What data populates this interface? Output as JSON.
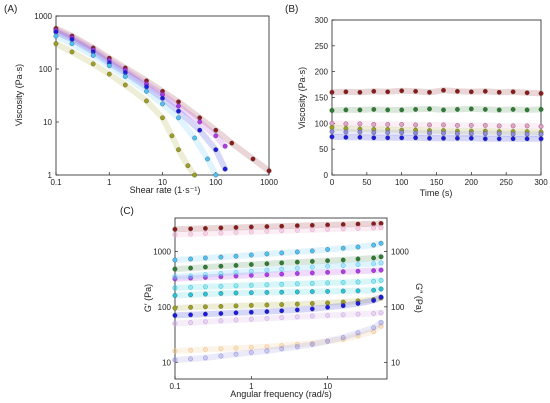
{
  "figure": {
    "panels": [
      "(A)",
      "(B)",
      "(C)"
    ]
  },
  "colors": {
    "brown": "#8B1A1A",
    "cyan": "#4FC3F7",
    "green": "#2E7D32",
    "purple": "#B23AEE",
    "teal": "#26C6DA",
    "olive": "#A0A020",
    "blue": "#1A1AE0",
    "periwinkle": "#8C8CE0",
    "lavender": "#C8A0E0",
    "peach": "#F0C080",
    "pink": "#E8A0C8",
    "gray": "#606080"
  },
  "chart_data": [
    {
      "panel": "(A)",
      "type": "scatter",
      "xlabel": "Shear rate (1·s⁻¹)",
      "ylabel": "Viscosity (Pa·s)",
      "xscale": "log",
      "yscale": "log",
      "xlim": [
        0.1,
        1000
      ],
      "ylim": [
        1,
        1000
      ],
      "xticks": [
        0.1,
        1,
        10,
        100,
        1000
      ],
      "xtick_labels": [
        "0.1",
        "1",
        "10",
        "100",
        "1000"
      ],
      "yticks": [
        1,
        10,
        100,
        1000
      ],
      "ytick_labels": [
        "1",
        "10",
        "100",
        "1000"
      ],
      "grid": false,
      "legend": "none",
      "series": [
        {
          "color": "brown",
          "points": [
            [
              0.1,
              580
            ],
            [
              0.2,
              420
            ],
            [
              0.5,
              250
            ],
            [
              1,
              160
            ],
            [
              2,
              105
            ],
            [
              5,
              60
            ],
            [
              10,
              38
            ],
            [
              20,
              24
            ],
            [
              50,
              12
            ],
            [
              100,
              7
            ],
            [
              200,
              4
            ],
            [
              500,
              2
            ],
            [
              1000,
              1.2
            ]
          ]
        },
        {
          "color": "purple",
          "points": [
            [
              0.1,
              540
            ],
            [
              0.2,
              390
            ],
            [
              0.5,
              230
            ],
            [
              1,
              145
            ],
            [
              2,
              95
            ],
            [
              5,
              52
            ],
            [
              10,
              33
            ],
            [
              20,
              20
            ],
            [
              50,
              10
            ],
            [
              100,
              5.5
            ],
            [
              150,
              3.5
            ]
          ]
        },
        {
          "color": "blue",
          "points": [
            [
              0.1,
              500
            ],
            [
              0.2,
              360
            ],
            [
              0.5,
              210
            ],
            [
              1,
              130
            ],
            [
              2,
              85
            ],
            [
              5,
              46
            ],
            [
              10,
              28
            ],
            [
              20,
              16
            ],
            [
              50,
              7
            ],
            [
              100,
              3
            ],
            [
              150,
              1.3
            ]
          ]
        },
        {
          "color": "cyan",
          "points": [
            [
              0.1,
              420
            ],
            [
              0.2,
              300
            ],
            [
              0.5,
              180
            ],
            [
              1,
              115
            ],
            [
              2,
              72
            ],
            [
              5,
              38
            ],
            [
              10,
              22
            ],
            [
              20,
              12
            ],
            [
              40,
              5
            ],
            [
              70,
              2
            ],
            [
              100,
              1
            ]
          ]
        },
        {
          "color": "olive",
          "points": [
            [
              0.1,
              300
            ],
            [
              0.2,
              210
            ],
            [
              0.5,
              125
            ],
            [
              1,
              80
            ],
            [
              2,
              50
            ],
            [
              5,
              25
            ],
            [
              10,
              12
            ],
            [
              15,
              5.5
            ],
            [
              20,
              3
            ],
            [
              30,
              1.5
            ],
            [
              40,
              1
            ]
          ]
        }
      ]
    },
    {
      "panel": "(B)",
      "type": "scatter",
      "xlabel": "Time (s)",
      "ylabel": "Viscosity (Pa·s)",
      "xlim": [
        0,
        300
      ],
      "ylim": [
        0,
        300
      ],
      "xticks": [
        0,
        50,
        100,
        150,
        200,
        250,
        300
      ],
      "yticks": [
        0,
        50,
        100,
        150,
        200,
        250,
        300
      ],
      "grid": false,
      "legend": "none",
      "x": [
        0,
        20,
        40,
        60,
        80,
        100,
        120,
        140,
        160,
        180,
        200,
        220,
        240,
        260,
        280,
        300
      ],
      "series": [
        {
          "color": "brown",
          "values": [
            160,
            161,
            160,
            162,
            161,
            163,
            162,
            160,
            164,
            162,
            161,
            162,
            160,
            161,
            159,
            158
          ]
        },
        {
          "color": "green",
          "values": [
            125,
            126,
            126,
            127,
            126,
            126,
            127,
            128,
            126,
            127,
            128,
            127,
            126,
            127,
            126,
            127
          ]
        },
        {
          "color": "pink",
          "values": [
            100,
            99,
            99,
            98,
            98,
            98,
            97,
            97,
            97,
            96,
            96,
            96,
            95,
            95,
            95,
            94
          ]
        },
        {
          "color": "olive",
          "values": [
            92,
            90,
            89,
            88,
            88,
            87,
            87,
            86,
            86,
            85,
            85,
            85,
            84,
            84,
            84,
            83
          ]
        },
        {
          "color": "periwinkle",
          "values": [
            84,
            83,
            83,
            82,
            82,
            82,
            81,
            81,
            81,
            80,
            80,
            80,
            80,
            79,
            79,
            79
          ]
        },
        {
          "color": "blue",
          "values": [
            74,
            73,
            73,
            72,
            72,
            72,
            72,
            71,
            71,
            71,
            71,
            70,
            70,
            70,
            70,
            70
          ]
        }
      ]
    },
    {
      "panel": "(C)",
      "type": "scatter",
      "xlabel": "Angular frequency (rad/s)",
      "ylabel": "G′ (Pa)",
      "y2label": "G″ (Pa)",
      "xscale": "log",
      "yscale": "log",
      "xlim": [
        0.1,
        60
      ],
      "ylim": [
        5,
        4000
      ],
      "xticks": [
        0.1,
        1,
        10
      ],
      "xtick_labels": [
        "0.1",
        "1",
        "10"
      ],
      "yticks": [
        10,
        100,
        1000
      ],
      "ytick_labels": [
        "10",
        "100",
        "1000"
      ],
      "y2ticks": [
        10,
        100,
        1000
      ],
      "y2tick_labels": [
        "10",
        "100",
        "1000"
      ],
      "grid": false,
      "legend": "none",
      "x": [
        0.1,
        0.16,
        0.25,
        0.4,
        0.63,
        1,
        1.6,
        2.5,
        4,
        6.3,
        10,
        16,
        25,
        40,
        50
      ],
      "series": [
        {
          "color": "brown",
          "style": "filled",
          "values": [
            2500,
            2550,
            2600,
            2650,
            2700,
            2750,
            2800,
            2850,
            2900,
            2950,
            3000,
            3050,
            3100,
            3150,
            3200
          ]
        },
        {
          "color": "cyan",
          "style": "filled",
          "values": [
            700,
            730,
            760,
            790,
            820,
            860,
            900,
            940,
            980,
            1020,
            1080,
            1140,
            1200,
            1300,
            1400
          ]
        },
        {
          "color": "green",
          "style": "filled",
          "values": [
            480,
            500,
            520,
            540,
            560,
            580,
            600,
            620,
            640,
            660,
            680,
            700,
            730,
            760,
            800
          ]
        },
        {
          "color": "purple",
          "style": "filled",
          "values": [
            320,
            330,
            340,
            350,
            360,
            370,
            380,
            390,
            400,
            410,
            420,
            430,
            440,
            450,
            460
          ]
        },
        {
          "color": "teal",
          "style": "filled",
          "values": [
            160,
            165,
            170,
            175,
            178,
            180,
            182,
            184,
            186,
            188,
            190,
            192,
            195,
            200,
            210
          ]
        },
        {
          "color": "olive",
          "style": "filled",
          "values": [
            95,
            98,
            100,
            102,
            104,
            106,
            108,
            110,
            112,
            115,
            118,
            122,
            128,
            135,
            145
          ]
        },
        {
          "color": "blue",
          "style": "filled",
          "values": [
            70,
            72,
            74,
            76,
            78,
            80,
            82,
            85,
            88,
            92,
            98,
            105,
            115,
            130,
            150
          ]
        },
        {
          "color": "pink",
          "style": "open",
          "values": [
            2000,
            2050,
            2100,
            2150,
            2200,
            2250,
            2300,
            2350,
            2400,
            2450,
            2500,
            2550,
            2600,
            2650,
            2700
          ]
        },
        {
          "color": "cyan",
          "style": "open",
          "values": [
            350,
            360,
            380,
            400,
            420,
            440,
            460,
            480,
            500,
            520,
            540,
            560,
            580,
            600,
            620
          ]
        },
        {
          "color": "teal",
          "style": "open",
          "values": [
            220,
            225,
            230,
            235,
            240,
            245,
            250,
            255,
            260,
            265,
            270,
            275,
            280,
            290,
            300
          ]
        },
        {
          "color": "lavender",
          "style": "open",
          "values": [
            50,
            52,
            54,
            56,
            58,
            60,
            62,
            64,
            66,
            68,
            70,
            72,
            74,
            76,
            78
          ]
        },
        {
          "color": "peach",
          "style": "open",
          "values": [
            16,
            16.5,
            17,
            17.5,
            18,
            18.5,
            19,
            20,
            21,
            22,
            24,
            26,
            30,
            36,
            45
          ]
        },
        {
          "color": "periwinkle",
          "style": "open",
          "values": [
            11,
            11.5,
            12,
            13,
            14,
            15,
            16,
            17.5,
            19,
            21,
            24,
            28,
            34,
            42,
            52
          ]
        }
      ]
    }
  ]
}
